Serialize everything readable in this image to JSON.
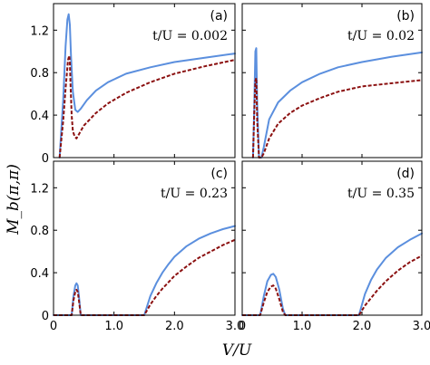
{
  "colors": {
    "series_1": "#5b8fde",
    "series_2": "#8b1010"
  },
  "figure": {
    "xlabel": "V/U",
    "ylabel": "M_b(π,π)"
  },
  "chart_data": [
    {
      "type": "line",
      "panel": "(a)",
      "annotation": "t/U = 0.002",
      "xlim": [
        0,
        3.0
      ],
      "ylim": [
        0,
        1.45
      ],
      "xticks": [],
      "yticks": [
        "0",
        "0.4",
        "0.8",
        "1.2"
      ],
      "series": [
        {
          "color": "#5b8fde",
          "style": "solid",
          "x": [
            0.1,
            0.16,
            0.2,
            0.23,
            0.25,
            0.27,
            0.29,
            0.32,
            0.36,
            0.4,
            0.45,
            0.55,
            0.7,
            0.9,
            1.2,
            1.6,
            2.0,
            2.5,
            3.0
          ],
          "y": [
            0.0,
            0.55,
            1.05,
            1.3,
            1.35,
            1.25,
            0.95,
            0.62,
            0.45,
            0.43,
            0.46,
            0.54,
            0.63,
            0.71,
            0.79,
            0.85,
            0.9,
            0.94,
            0.98
          ]
        },
        {
          "color": "#8b1010",
          "style": "dashed",
          "x": [
            0.1,
            0.16,
            0.2,
            0.24,
            0.26,
            0.27,
            0.28,
            0.3,
            0.32,
            0.35,
            0.38,
            0.42,
            0.5,
            0.7,
            0.9,
            1.2,
            1.6,
            2.0,
            2.5,
            3.0
          ],
          "y": [
            0.0,
            0.35,
            0.65,
            0.92,
            0.96,
            0.9,
            0.7,
            0.4,
            0.25,
            0.2,
            0.18,
            0.22,
            0.3,
            0.42,
            0.51,
            0.61,
            0.71,
            0.79,
            0.86,
            0.92
          ]
        }
      ]
    },
    {
      "type": "line",
      "panel": "(b)",
      "annotation": "t/U = 0.02",
      "xlim": [
        0,
        3.0
      ],
      "ylim": [
        0,
        1.45
      ],
      "xticks": [],
      "yticks": [],
      "series": [
        {
          "color": "#5b8fde",
          "style": "solid",
          "x": [
            0.18,
            0.2,
            0.22,
            0.235,
            0.25,
            0.28,
            0.32,
            0.36,
            0.45,
            0.6,
            0.8,
            1.0,
            1.3,
            1.6,
            2.0,
            2.5,
            3.0
          ],
          "y": [
            0.0,
            0.45,
            1.0,
            1.03,
            0.5,
            0.0,
            0.0,
            0.1,
            0.36,
            0.52,
            0.63,
            0.71,
            0.79,
            0.85,
            0.9,
            0.95,
            0.99
          ]
        },
        {
          "color": "#8b1010",
          "style": "dashed",
          "x": [
            0.18,
            0.2,
            0.22,
            0.235,
            0.25,
            0.28,
            0.32,
            0.36,
            0.45,
            0.6,
            0.8,
            1.0,
            1.3,
            1.6,
            2.0,
            2.5,
            3.0
          ],
          "y": [
            0.0,
            0.4,
            0.72,
            0.75,
            0.35,
            0.0,
            0.0,
            0.04,
            0.18,
            0.32,
            0.42,
            0.49,
            0.56,
            0.62,
            0.67,
            0.7,
            0.73
          ]
        }
      ]
    },
    {
      "type": "line",
      "panel": "(c)",
      "annotation": "t/U = 0.23",
      "xlim": [
        0,
        3.0
      ],
      "ylim": [
        0,
        1.45
      ],
      "xticks": [
        "0",
        "1.0",
        "2.0",
        "3.0"
      ],
      "yticks": [
        "0",
        "0.4",
        "0.8",
        "1.2"
      ],
      "series": [
        {
          "color": "#5b8fde",
          "style": "solid",
          "x": [
            0.0,
            0.3,
            0.33,
            0.36,
            0.38,
            0.4,
            0.42,
            0.45,
            1.0,
            1.5,
            1.6,
            1.7,
            1.8,
            1.9,
            2.0,
            2.2,
            2.4,
            2.6,
            2.8,
            3.0
          ],
          "y": [
            0.0,
            0.0,
            0.18,
            0.28,
            0.3,
            0.28,
            0.18,
            0.0,
            0.0,
            0.0,
            0.18,
            0.3,
            0.4,
            0.48,
            0.55,
            0.65,
            0.72,
            0.77,
            0.81,
            0.84
          ]
        },
        {
          "color": "#8b1010",
          "style": "dashed",
          "x": [
            0.0,
            0.3,
            0.33,
            0.36,
            0.38,
            0.4,
            0.42,
            0.45,
            1.0,
            1.5,
            1.6,
            1.7,
            1.8,
            1.9,
            2.0,
            2.2,
            2.4,
            2.6,
            2.8,
            3.0
          ],
          "y": [
            0.0,
            0.0,
            0.14,
            0.22,
            0.24,
            0.22,
            0.14,
            0.0,
            0.0,
            0.0,
            0.1,
            0.18,
            0.25,
            0.31,
            0.37,
            0.46,
            0.54,
            0.6,
            0.66,
            0.71
          ]
        }
      ]
    },
    {
      "type": "line",
      "panel": "(d)",
      "annotation": "t/U = 0.35",
      "xlim": [
        0,
        3.0
      ],
      "ylim": [
        0,
        1.45
      ],
      "xticks": [
        "0",
        "1.0",
        "2.0",
        "3.0"
      ],
      "yticks": [],
      "series": [
        {
          "color": "#5b8fde",
          "style": "solid",
          "x": [
            0.0,
            0.3,
            0.36,
            0.42,
            0.48,
            0.52,
            0.56,
            0.62,
            0.68,
            0.72,
            1.0,
            1.95,
            2.05,
            2.15,
            2.25,
            2.4,
            2.6,
            2.8,
            3.0
          ],
          "y": [
            0.0,
            0.0,
            0.18,
            0.32,
            0.38,
            0.39,
            0.36,
            0.24,
            0.06,
            0.0,
            0.0,
            0.0,
            0.2,
            0.33,
            0.43,
            0.54,
            0.64,
            0.71,
            0.77
          ]
        },
        {
          "color": "#8b1010",
          "style": "dashed",
          "x": [
            0.0,
            0.3,
            0.36,
            0.42,
            0.48,
            0.52,
            0.56,
            0.62,
            0.68,
            0.72,
            1.0,
            1.95,
            2.05,
            2.15,
            2.25,
            2.4,
            2.6,
            2.8,
            3.0
          ],
          "y": [
            0.0,
            0.0,
            0.12,
            0.22,
            0.27,
            0.28,
            0.25,
            0.15,
            0.03,
            0.0,
            0.0,
            0.0,
            0.09,
            0.16,
            0.23,
            0.32,
            0.42,
            0.5,
            0.56
          ]
        }
      ]
    }
  ]
}
